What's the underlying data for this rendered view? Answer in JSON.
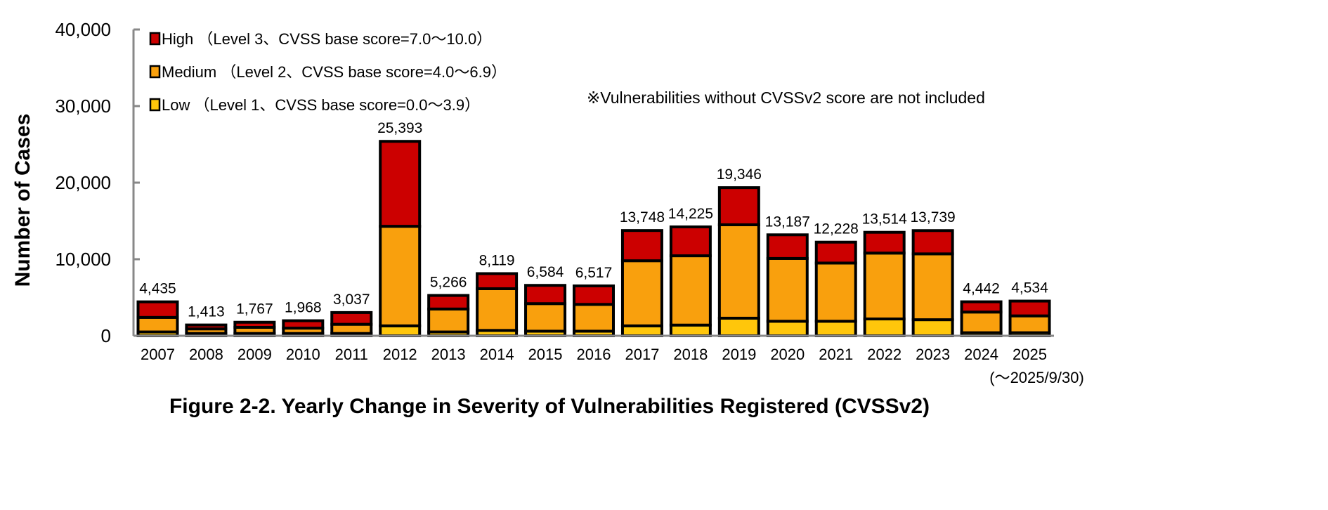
{
  "chart_data": {
    "type": "bar",
    "stacked": true,
    "title": "Figure 2-2. Yearly Change in Severity of Vulnerabilities Registered (CVSSv2)",
    "xlabel": "",
    "ylabel": "Number of Cases",
    "ylim": [
      0,
      40000
    ],
    "yticks": [
      "0",
      "10,000",
      "20,000",
      "30,000",
      "40,000"
    ],
    "grid": false,
    "legend_position": "top-left",
    "note": "※Vulnerabilities without CVSSv2 score are not included",
    "categories": [
      "2007",
      "2008",
      "2009",
      "2010",
      "2011",
      "2012",
      "2013",
      "2014",
      "2015",
      "2016",
      "2017",
      "2018",
      "2019",
      "2020",
      "2021",
      "2022",
      "2023",
      "2024",
      "2025"
    ],
    "category_sublabel": {
      "2025": "(～2025/9/30)"
    },
    "totals": [
      4435,
      1413,
      1767,
      1968,
      3037,
      25393,
      5266,
      8119,
      6584,
      6517,
      13748,
      14225,
      19346,
      13187,
      12228,
      13514,
      13739,
      4442,
      4534
    ],
    "total_labels": [
      "4,435",
      "1,413",
      "1,767",
      "1,968",
      "3,037",
      "25,393",
      "5,266",
      "8,119",
      "6,584",
      "6,517",
      "13,748",
      "14,225",
      "19,346",
      "13,187",
      "12,228",
      "13,514",
      "13,739",
      "4,442",
      "4,534"
    ],
    "series": [
      {
        "name": "Low （Level 1、CVSS base score=0.0～3.9）",
        "color": "#FFC60B",
        "values": [
          500,
          300,
          300,
          300,
          300,
          1300,
          500,
          700,
          600,
          600,
          1300,
          1400,
          2300,
          1900,
          1900,
          2200,
          2100,
          400,
          400
        ]
      },
      {
        "name": "Medium （Level 2、CVSS base score=4.0～6.9）",
        "color": "#F9A00D",
        "values": [
          1900,
          600,
          800,
          700,
          1200,
          13000,
          3000,
          5450,
          3600,
          3500,
          8500,
          9050,
          12200,
          8200,
          7600,
          8600,
          8600,
          2700,
          2200
        ]
      },
      {
        "name": "High （Level 3、CVSS base score=7.0～10.0）",
        "color": "#CC0000",
        "values": [
          2035,
          513,
          667,
          968,
          1537,
          11093,
          1766,
          1969,
          2384,
          2417,
          3948,
          3775,
          4846,
          3087,
          2728,
          2714,
          3039,
          1342,
          1934
        ]
      }
    ]
  }
}
